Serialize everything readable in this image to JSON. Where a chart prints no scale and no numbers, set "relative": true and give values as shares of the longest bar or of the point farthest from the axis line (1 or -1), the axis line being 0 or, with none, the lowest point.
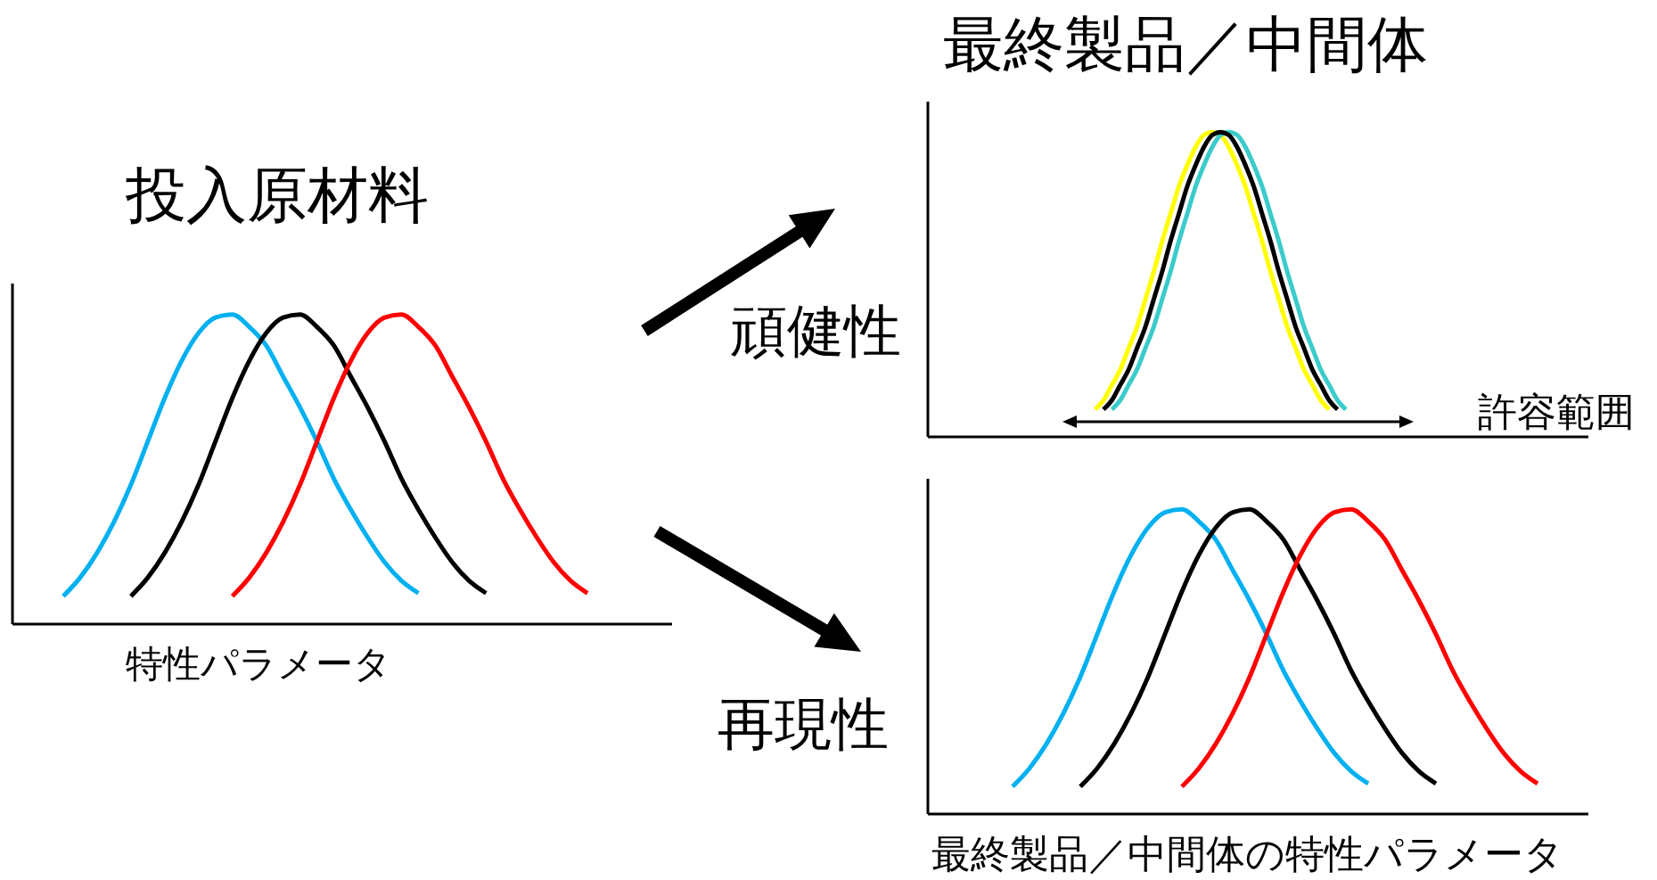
{
  "chart_data": [
    {
      "type": "line",
      "title": "投入原材料",
      "xlabel": "特性パラメータ",
      "relative": true,
      "marker": "none",
      "line_style": "solid",
      "categories": [
        null,
        null,
        null,
        null,
        null,
        null,
        null,
        null,
        null,
        null,
        null,
        null,
        null,
        null,
        null,
        null,
        null,
        null,
        null,
        null,
        null,
        null,
        null,
        null,
        null,
        null,
        null,
        null,
        null,
        null,
        null,
        null,
        null,
        null,
        null,
        null,
        null,
        null,
        null,
        null
      ],
      "series": [
        {
          "color": "#00b0f0",
          "values": [
            null,
            null,
            null,
            0.09,
            0.15,
            0.23,
            0.33,
            0.45,
            0.59,
            0.73,
            0.85,
            0.94,
            0.99,
            1,
            0.96,
            0.9,
            0.8,
            0.7,
            0.59,
            0.47,
            0.37,
            0.28,
            0.2,
            0.14,
            0.1,
            null,
            null,
            null,
            null,
            null,
            null,
            null,
            null,
            null,
            null,
            null,
            null,
            null,
            null,
            null
          ]
        },
        {
          "color": "#000000",
          "values": [
            null,
            null,
            null,
            null,
            null,
            null,
            null,
            0.09,
            0.15,
            0.23,
            0.33,
            0.45,
            0.59,
            0.73,
            0.85,
            0.94,
            0.99,
            1,
            0.96,
            0.9,
            0.8,
            0.7,
            0.59,
            0.47,
            0.37,
            0.28,
            0.2,
            0.14,
            0.1,
            null,
            null,
            null,
            null,
            null,
            null,
            null,
            null,
            null,
            null,
            null
          ]
        },
        {
          "color": "#ff0000",
          "values": [
            null,
            null,
            null,
            null,
            null,
            null,
            null,
            null,
            null,
            null,
            null,
            null,
            null,
            0.09,
            0.15,
            0.23,
            0.33,
            0.45,
            0.59,
            0.73,
            0.85,
            0.94,
            0.99,
            1,
            0.96,
            0.9,
            0.8,
            0.7,
            0.59,
            0.47,
            0.37,
            0.28,
            0.2,
            0.14,
            0.1,
            null,
            null,
            null,
            null,
            null
          ]
        }
      ]
    },
    {
      "type": "line",
      "title": "最終製品／中間体",
      "relative": true,
      "marker": "none",
      "line_style": "solid",
      "annotations": [
        "頑健性",
        "許容範囲"
      ],
      "categories": [
        null,
        null,
        null,
        null,
        null,
        null,
        null,
        null,
        null,
        null,
        null,
        null,
        null,
        null,
        null,
        null,
        null,
        null,
        null,
        null,
        null,
        null,
        null,
        null,
        null,
        null,
        null,
        null,
        null,
        null,
        null,
        null,
        null,
        null,
        null,
        null,
        null,
        null,
        null,
        null,
        null,
        null,
        null,
        null,
        null,
        null,
        null,
        null,
        null,
        null,
        null,
        null,
        null,
        null,
        null,
        null,
        null,
        null,
        null,
        null,
        null,
        null,
        null,
        null,
        null,
        null,
        null,
        null,
        null,
        null,
        null,
        null,
        null,
        null,
        null,
        null,
        null,
        null,
        null,
        null
      ],
      "series": [
        {
          "color": "#ffff00",
          "values": [
            null,
            null,
            null,
            null,
            null,
            null,
            null,
            null,
            null,
            null,
            null,
            null,
            null,
            null,
            null,
            null,
            null,
            null,
            null,
            null,
            0.09,
            0.12,
            0.17,
            0.22,
            0.29,
            0.36,
            0.45,
            0.54,
            0.64,
            0.73,
            0.82,
            0.89,
            0.95,
            0.99,
            1,
            0.99,
            0.95,
            0.89,
            0.82,
            0.73,
            0.64,
            0.54,
            0.45,
            0.36,
            0.29,
            0.22,
            0.17,
            0.12,
            0.09,
            null,
            null,
            null,
            null,
            null,
            null,
            null,
            null,
            null,
            null,
            null,
            null,
            null,
            null,
            null,
            null,
            null,
            null,
            null,
            null,
            null,
            null,
            null,
            null,
            null,
            null,
            null,
            null,
            null,
            null,
            null
          ]
        },
        {
          "color": "#3ccbcb",
          "values": [
            null,
            null,
            null,
            null,
            null,
            null,
            null,
            null,
            null,
            null,
            null,
            null,
            null,
            null,
            null,
            null,
            null,
            null,
            null,
            null,
            null,
            null,
            0.09,
            0.12,
            0.17,
            0.22,
            0.29,
            0.36,
            0.45,
            0.54,
            0.64,
            0.73,
            0.82,
            0.89,
            0.95,
            0.99,
            1,
            0.99,
            0.95,
            0.89,
            0.82,
            0.73,
            0.64,
            0.54,
            0.45,
            0.36,
            0.29,
            0.22,
            0.17,
            0.12,
            0.09,
            null,
            null,
            null,
            null,
            null,
            null,
            null,
            null,
            null,
            null,
            null,
            null,
            null,
            null,
            null,
            null,
            null,
            null,
            null,
            null,
            null,
            null,
            null,
            null,
            null,
            null,
            null,
            null,
            null
          ]
        },
        {
          "color": "#000000",
          "values": [
            null,
            null,
            null,
            null,
            null,
            null,
            null,
            null,
            null,
            null,
            null,
            null,
            null,
            null,
            null,
            null,
            null,
            null,
            null,
            null,
            null,
            0.09,
            0.12,
            0.17,
            0.22,
            0.29,
            0.36,
            0.45,
            0.54,
            0.64,
            0.73,
            0.82,
            0.89,
            0.95,
            0.99,
            1,
            0.99,
            0.95,
            0.89,
            0.82,
            0.73,
            0.64,
            0.54,
            0.45,
            0.36,
            0.29,
            0.22,
            0.17,
            0.12,
            0.09,
            null,
            null,
            null,
            null,
            null,
            null,
            null,
            null,
            null,
            null,
            null,
            null,
            null,
            null,
            null,
            null,
            null,
            null,
            null,
            null,
            null,
            null,
            null,
            null,
            null,
            null,
            null,
            null,
            null,
            null
          ]
        }
      ]
    },
    {
      "type": "line",
      "xlabel": "最終製品／中間体の特性パラメータ",
      "relative": true,
      "marker": "none",
      "line_style": "solid",
      "annotations": [
        "再現性"
      ],
      "categories": [
        null,
        null,
        null,
        null,
        null,
        null,
        null,
        null,
        null,
        null,
        null,
        null,
        null,
        null,
        null,
        null,
        null,
        null,
        null,
        null,
        null,
        null,
        null,
        null,
        null,
        null,
        null,
        null,
        null,
        null,
        null,
        null,
        null,
        null,
        null,
        null,
        null,
        null,
        null,
        null
      ],
      "series": [
        {
          "color": "#00b0f0",
          "values": [
            null,
            null,
            null,
            null,
            null,
            0.09,
            0.15,
            0.23,
            0.33,
            0.45,
            0.59,
            0.73,
            0.85,
            0.94,
            0.99,
            1,
            0.96,
            0.9,
            0.8,
            0.7,
            0.59,
            0.47,
            0.37,
            0.28,
            0.2,
            0.14,
            0.1,
            null,
            null,
            null,
            null,
            null,
            null,
            null,
            null,
            null,
            null,
            null,
            null,
            null
          ]
        },
        {
          "color": "#000000",
          "values": [
            null,
            null,
            null,
            null,
            null,
            null,
            null,
            null,
            null,
            0.09,
            0.15,
            0.23,
            0.33,
            0.45,
            0.59,
            0.73,
            0.85,
            0.94,
            0.99,
            1,
            0.96,
            0.9,
            0.8,
            0.7,
            0.59,
            0.47,
            0.37,
            0.28,
            0.2,
            0.14,
            0.1,
            null,
            null,
            null,
            null,
            null,
            null,
            null,
            null,
            null
          ]
        },
        {
          "color": "#ff0000",
          "values": [
            null,
            null,
            null,
            null,
            null,
            null,
            null,
            null,
            null,
            null,
            null,
            null,
            null,
            null,
            null,
            0.09,
            0.15,
            0.23,
            0.33,
            0.45,
            0.59,
            0.73,
            0.85,
            0.94,
            0.99,
            1,
            0.96,
            0.9,
            0.8,
            0.7,
            0.59,
            0.47,
            0.37,
            0.28,
            0.2,
            0.14,
            0.1,
            null,
            null,
            null
          ]
        }
      ]
    }
  ]
}
